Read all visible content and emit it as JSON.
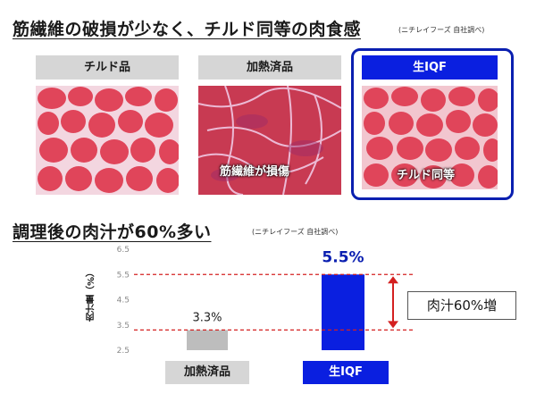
{
  "section1": {
    "title": "筋繊維の破損が少なく、チルド同等の肉食感",
    "source_note": "(ニチレイフーズ 自社調べ)",
    "panels": [
      {
        "label": "チルド品",
        "caption": ""
      },
      {
        "label": "加熱済品",
        "caption": "筋繊維が損傷"
      },
      {
        "label": "生IQF",
        "caption": "チルド同等"
      }
    ]
  },
  "section2": {
    "title": "調理後の肉汁が60%多い",
    "source_note": "(ニチレイフーズ 自社調べ)",
    "callout": "肉汁60%増"
  },
  "colors": {
    "accent_blue": "#0a1fb0",
    "bar_gray": "#bdbdbd",
    "bar_blue": "#0a1fe0",
    "dashed_red": "#d42020",
    "muscle_red": "#e0455a"
  },
  "chart_data": {
    "type": "bar",
    "categories": [
      "加熱済品",
      "生IQF"
    ],
    "values": [
      3.3,
      5.5
    ],
    "value_labels": [
      "3.3%",
      "5.5%"
    ],
    "title": "",
    "xlabel": "",
    "ylabel": "肉汁量（%）",
    "ylim": [
      2.5,
      6.5
    ],
    "yticks": [
      "6.5",
      "5.5",
      "4.5",
      "3.5",
      "2.5"
    ],
    "grid": false,
    "reference_lines": [
      5.5,
      3.3
    ]
  }
}
